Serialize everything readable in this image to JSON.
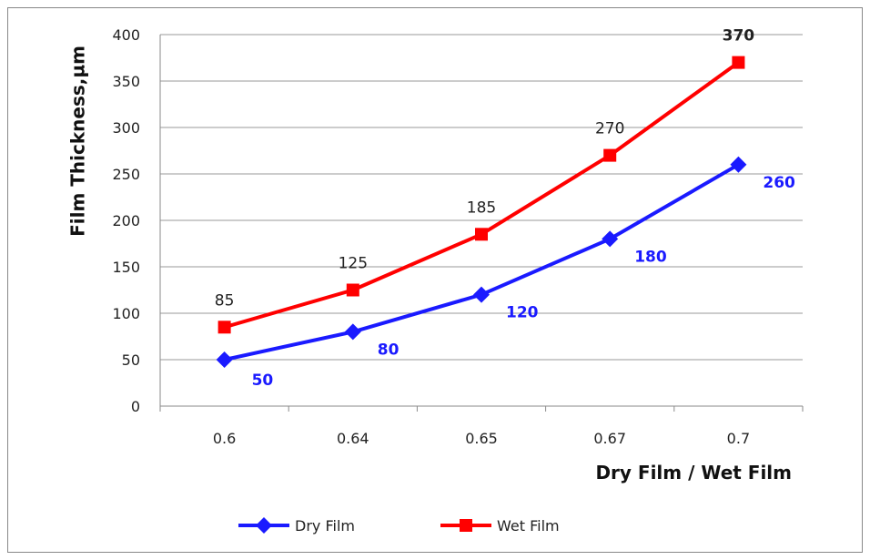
{
  "chart_data": {
    "type": "line",
    "categories": [
      "0.6",
      "0.64",
      "0.65",
      "0.67",
      "0.7"
    ],
    "xlabel": "Dry Film / Wet Film",
    "ylabel": "Film Thickness,µm",
    "ylim": [
      0,
      400
    ],
    "yticks": [
      0,
      50,
      100,
      150,
      200,
      250,
      300,
      350,
      400
    ],
    "yticks_labels": [
      "0",
      "50",
      "100",
      "150",
      "200",
      "250",
      "300",
      "350",
      "400"
    ],
    "grid": true,
    "legend_position": "bottom",
    "series": [
      {
        "name": "Dry Film",
        "values": [
          50,
          80,
          120,
          180,
          260
        ],
        "value_labels": [
          "50",
          "80",
          "120",
          "180",
          "260"
        ],
        "color": "#1a1aff",
        "marker": "diamond",
        "label_position": "below-right"
      },
      {
        "name": "Wet Film",
        "values": [
          85,
          125,
          185,
          270,
          370
        ],
        "value_labels": [
          "85",
          "125",
          "185",
          "270",
          "370"
        ],
        "color": "#ff0000",
        "marker": "square",
        "label_position": "above"
      }
    ]
  }
}
